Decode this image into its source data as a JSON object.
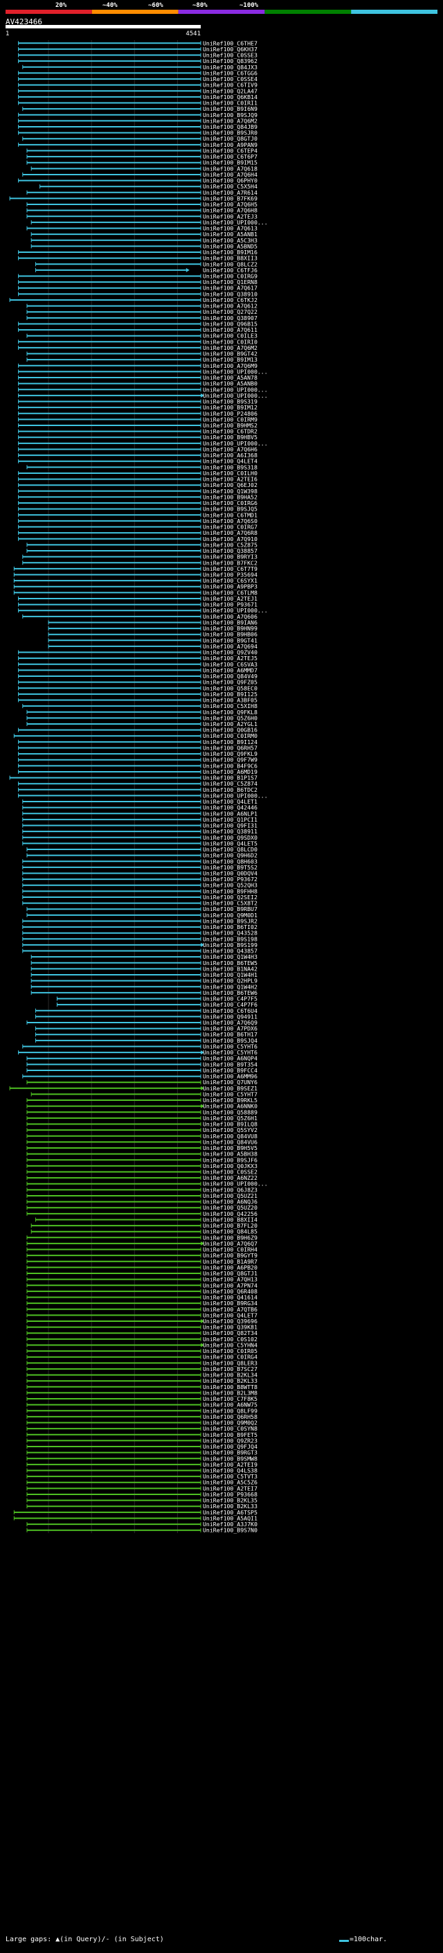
{
  "query_name": "AV423466",
  "chart_data": {
    "type": "alignment-overview",
    "scale_labels": [
      "100%",
      "20%",
      "~40%",
      "~60%",
      "~80%",
      "~100%"
    ],
    "scale_colors": [
      "#e0202a",
      "#ff8c00",
      "#8a2be2",
      "#008000",
      "#3fc4e0"
    ],
    "axis": {
      "start": 1,
      "end": 4541,
      "start_label": "1",
      "end_label": "4541",
      "gridlines": [
        1000,
        2000,
        3000,
        4000
      ]
    },
    "legend": {
      "large_gaps": "Large gaps: ▲(in Query)/- (in Subject)",
      "scale_bar": "=100char."
    },
    "subjects": [
      "UniRef100_C6THE7",
      "UniRef100_Q6KH37",
      "UniRef100_C0SSE3",
      "UniRef100_Q83962",
      "UniRef100_Q84JX3",
      "UniRef100_C6TGG6",
      "UniRef100_C0SSE4",
      "UniRef100_C6TIV9",
      "UniRef100_Q2LA47",
      "UniRef100_Q6KB14",
      "UniRef100_C0IRI1",
      "UniRef100_B9I6N9",
      "UniRef100_B9SJQ9",
      "UniRef100_A7Q6M2",
      "UniRef100_Q84JB9",
      "UniRef100_B9SJR0",
      "UniRef100_Q8GTJ0",
      "UniRef100_A9PAN9",
      "UniRef100_C6TEP4",
      "UniRef100_C6T6P7",
      "UniRef100_B9IM15",
      "UniRef100_A7Q618",
      "UniRef100_A7Q6H4",
      "UniRef100_Q6PHY0",
      "UniRef100_C5X5H4",
      "UniRef100_A7R614",
      "UniRef100_B7FK69",
      "UniRef100_A7Q6H5",
      "UniRef100_A7Q6H8",
      "UniRef100_A2TEJ3",
      "UniRef100_UPI000...",
      "UniRef100_A7Q613",
      "UniRef100_A5ANB1",
      "UniRef100_A5C3H3",
      "UniRef100_A5BND5",
      "UniRef100_B9IM16",
      "UniRef100_B8XII3",
      "UniRef100_Q8LCZ2",
      "UniRef100_C6TFJ6",
      "UniRef100_C0IRG9",
      "UniRef100_Q1ERN8",
      "UniRef100_A7Q617",
      "UniRef100_Q38910",
      "UniRef100_C6TKJ2",
      "UniRef100_A7Q612",
      "UniRef100_Q27Q22",
      "UniRef100_Q38907",
      "UniRef100_Q96B15",
      "UniRef100_A7Q611",
      "UniRef100_C0ILE3",
      "UniRef100_C0IRI0",
      "UniRef100_A7Q6M2",
      "UniRef100_B9GT42",
      "UniRef100_B9IM13",
      "UniRef100_A7Q6M9",
      "UniRef100_UPI000...",
      "UniRef100_A5AN78",
      "UniRef100_A5ANB0",
      "UniRef100_UPI000...",
      "UniRef100_UPI000...",
      "UniRef100_B9S319",
      "UniRef100_B9IM12",
      "UniRef100_P24806",
      "UniRef100_C0IRM9",
      "UniRef100_B9HMS2",
      "UniRef100_C6TDR2",
      "UniRef100_B9HBV5",
      "UniRef100_UPI000...",
      "UniRef100_A7Q6H6",
      "UniRef100_A6I368",
      "UniRef100_Q4LET4",
      "UniRef100_B9S318",
      "UniRef100_C0ILH0",
      "UniRef100_A2TEI6",
      "UniRef100_Q6EJ02",
      "UniRef100_Q1W398",
      "UniRef100_B9HA52",
      "UniRef100_C0IRG6",
      "UniRef100_B9SJQ5",
      "UniRef100_C6TMD1",
      "UniRef100_A7Q6S0",
      "UniRef100_C0IRG7",
      "UniRef100_A7Q6R8",
      "UniRef100_A7Q910",
      "UniRef100_C5Z875",
      "UniRef100_Q38857",
      "UniRef100_B9RYI3",
      "UniRef100_B7FKC2",
      "UniRef100_C6T7T9",
      "UniRef100_P35694",
      "UniRef100_C6SYX1",
      "UniRef100_A9PBP3",
      "UniRef100_C6TLM8",
      "UniRef100_A2TEJ1",
      "UniRef100_P93671",
      "UniRef100_UPI000...",
      "UniRef100_A7Q606",
      "UniRef100_B9IAN6",
      "UniRef100_B9HN99",
      "UniRef100_B9HB06",
      "UniRef100_B9GT41",
      "UniRef100_A7Q694",
      "UniRef100_Q9ZV40",
      "UniRef100_A2TEJ5",
      "UniRef100_C6SVA3",
      "UniRef100_A6MMD7",
      "UniRef100_Q84V49",
      "UniRef100_Q9FZ05",
      "UniRef100_Q58EC0",
      "UniRef100_B9I125",
      "UniRef100_A3BF05",
      "UniRef100_C5XIH8",
      "UniRef100_Q9FKL8",
      "UniRef100_Q5Z6H0",
      "UniRef100_A2YGL1",
      "UniRef100_Q0GB16",
      "UniRef100_C0IRM0",
      "UniRef100_B9I124",
      "UniRef100_Q6RH57",
      "UniRef100_Q9FKL9",
      "UniRef100_Q9F7W9",
      "UniRef100_B4F9C6",
      "UniRef100_A6MD19",
      "UniRef100_B1P1S7",
      "UniRef100_C5Z874",
      "UniRef100_B6TDC2",
      "UniRef100_UPI000...",
      "UniRef100_Q4LET1",
      "UniRef100_Q42446",
      "UniRef100_A6NLP1",
      "UniRef100_Q1PCI1",
      "UniRef100_Q9FI31",
      "UniRef100_Q38911",
      "UniRef100_Q9SDX0",
      "UniRef100_Q4LET5",
      "UniRef100_Q8LCD0",
      "UniRef100_Q9H6D2",
      "UniRef100_Q8H603",
      "UniRef100_B9T5S2",
      "UniRef100_Q0DQV4",
      "UniRef100_P93672",
      "UniRef100_Q52QH3",
      "UniRef100_B9FHH8",
      "UniRef100_Q2SEI2",
      "UniRef100_C5X8T2",
      "UniRef100_B9RBU7",
      "UniRef100_Q9M0D1",
      "UniRef100_B9SJR2",
      "UniRef100_B6TI02",
      "UniRef100_Q43528",
      "UniRef100_B9S198",
      "UniRef100_B9S199",
      "UniRef100_Q43857",
      "UniRef100_Q1W4H3",
      "UniRef100_B6TEW5",
      "UniRef100_B1NA42",
      "UniRef100_Q1W4H1",
      "UniRef100_Q2HPL9",
      "UniRef100_Q1W4H2",
      "UniRef100_B6TEW6",
      "UniRef100_C4P7F5",
      "UniRef100_C4P7F6",
      "UniRef100_C6T6U4",
      "UniRef100_Q94911",
      "UniRef100_A7Q6Q9",
      "UniRef100_A7PDX6",
      "UniRef100_B6TH17",
      "UniRef100_B9SJQ4",
      "UniRef100_C5YHT6",
      "UniRef100_C5YHT6",
      "UniRef100_A6NQP4",
      "UniRef100_B9T354",
      "UniRef100_B9FCC4",
      "UniRef100_A6MM96",
      "UniRef100_Q7UNY6",
      "UniRef100_B9SEZ1",
      "UniRef100_C5YHT7",
      "UniRef100_B9RKL5",
      "UniRef100_A6NNK0",
      "UniRef100_Q58889",
      "UniRef100_Q5Z6H1",
      "UniRef100_B9ILQ8",
      "UniRef100_Q5SYV2",
      "UniRef100_Q84VU8",
      "UniRef100_Q84VU6",
      "UniRef100_B9H5V5",
      "UniRef100_A5BH38",
      "UniRef100_B9SJF6",
      "UniRef100_Q0JKX3",
      "UniRef100_C0SSE2",
      "UniRef100_A6NZ22",
      "UniRef100_UPI000...",
      "UniRef100_Q6J8Z3",
      "UniRef100_Q5UZ21",
      "UniRef100_A6NQJ6",
      "UniRef100_Q5UZ20",
      "UniRef100_Q42256",
      "UniRef100_B8XII4",
      "UniRef100_B7FL20",
      "UniRef100_Q84L85",
      "UniRef100_B9H6Z9",
      "UniRef100_A7Q6Q7",
      "UniRef100_C0IRH4",
      "UniRef100_B9GYT9",
      "UniRef100_B1A9R7",
      "UniRef100_A6PB20",
      "UniRef100_Q8GTJ1",
      "UniRef100_A7QH13",
      "UniRef100_A7PN74",
      "UniRef100_Q6R408",
      "UniRef100_Q41614",
      "UniRef100_B9RG34",
      "UniRef100_A7QTB6",
      "UniRef100_Q4LET7",
      "UniRef100_Q39696",
      "UniRef100_Q39K81",
      "UniRef100_Q82T34",
      "UniRef100_C0S102",
      "UniRef100_C5YHN4",
      "UniRef100_C0IR05",
      "UniRef100_C0IRG4",
      "UniRef100_Q8LER3",
      "UniRef100_B7SC27",
      "UniRef100_B2KL34",
      "UniRef100_B2KL33",
      "UniRef100_B8WTT8",
      "UniRef100_B2L3M8",
      "UniRef100_C7F8K5",
      "UniRef100_A6NW75",
      "UniRef100_Q8LF99",
      "UniRef100_Q6RH58",
      "UniRef100_Q9M0Q2",
      "UniRef100_C0SYN8",
      "UniRef100_B9FET5",
      "UniRef100_Q9ZR23",
      "UniRef100_Q9FJQ4",
      "UniRef100_B9RGT3",
      "UniRef100_B9SMW8",
      "UniRef100_A2TEI9",
      "UniRef100_Q4LS38",
      "UniRef100_C5TVT3",
      "UniRef100_A5C5Z6",
      "UniRef100_A2TEI7",
      "UniRef100_P93668",
      "UniRef100_B2KL35",
      "UniRef100_B2KL33",
      "UniRef100_A6TSP5",
      "UniRef100_A5AQI1",
      "UniRef100_A3J7K0",
      "UniRef100_B9S7N0"
    ],
    "row_colors": [
      "#3fc4e0",
      "#3fc4e0",
      "#3fc4e0",
      "#3fc4e0",
      "#3fc4e0",
      "#3fc4e0",
      "#3fc4e0",
      "#3fc4e0",
      "#3fc4e0",
      "#3fc4e0",
      "#3fc4e0",
      "#3fc4e0",
      "#3fc4e0",
      "#3fc4e0",
      "#3fc4e0",
      "#3fc4e0",
      "#3fc4e0",
      "#3fc4e0",
      "#3fc4e0",
      "#3fc4e0",
      "#3fc4e0",
      "#3fc4e0",
      "#3fc4e0",
      "#3fc4e0",
      "#3fc4e0",
      "#3fc4e0",
      "#3fc4e0",
      "#3fc4e0",
      "#3fc4e0",
      "#3fc4e0",
      "#3fc4e0",
      "#3fc4e0",
      "#3fc4e0",
      "#3fc4e0",
      "#3fc4e0",
      "#3fc4e0",
      "#3fc4e0",
      "#3fc4e0",
      "#3fc4e0",
      "#3fc4e0",
      "#3fc4e0",
      "#3fc4e0",
      "#3fc4e0",
      "#3fc4e0",
      "#3fc4e0",
      "#3fc4e0",
      "#3fc4e0",
      "#3fc4e0",
      "#3fc4e0",
      "#3fc4e0",
      "#3fc4e0",
      "#3fc4e0",
      "#3fc4e0",
      "#3fc4e0",
      "#3fc4e0",
      "#3fc4e0",
      "#3fc4e0",
      "#3fc4e0",
      "#3fc4e0",
      "#3fc4e0",
      "#3fc4e0",
      "#3fc4e0",
      "#3fc4e0",
      "#3fc4e0",
      "#3fc4e0",
      "#3fc4e0",
      "#3fc4e0",
      "#3fc4e0",
      "#3fc4e0",
      "#3fc4e0",
      "#3fc4e0",
      "#3fc4e0",
      "#3fc4e0",
      "#3fc4e0",
      "#3fc4e0",
      "#3fc4e0",
      "#3fc4e0",
      "#3fc4e0",
      "#3fc4e0",
      "#3fc4e0",
      "#3fc4e0",
      "#3fc4e0",
      "#3fc4e0",
      "#3fc4e0",
      "#3fc4e0",
      "#3fc4e0",
      "#3fc4e0",
      "#3fc4e0",
      "#3fc4e0",
      "#3fc4e0",
      "#3fc4e0",
      "#3fc4e0",
      "#3fc4e0",
      "#3fc4e0",
      "#3fc4e0",
      "#3fc4e0",
      "#3fc4e0",
      "#3fc4e0",
      "#3fc4e0",
      "#3fc4e0",
      "#3fc4e0",
      "#3fc4e0",
      "#3fc4e0",
      "#3fc4e0",
      "#3fc4e0",
      "#3fc4e0",
      "#3fc4e0",
      "#3fc4e0",
      "#3fc4e0",
      "#3fc4e0",
      "#3fc4e0",
      "#3fc4e0",
      "#3fc4e0",
      "#3fc4e0",
      "#3fc4e0",
      "#3fc4e0",
      "#3fc4e0",
      "#3fc4e0",
      "#3fc4e0",
      "#3fc4e0",
      "#3fc4e0",
      "#3fc4e0",
      "#3fc4e0",
      "#3fc4e0",
      "#3fc4e0",
      "#3fc4e0",
      "#3fc4e0",
      "#3fc4e0",
      "#3fc4e0",
      "#3fc4e0",
      "#3fc4e0",
      "#3fc4e0",
      "#3fc4e0",
      "#3fc4e0",
      "#3fc4e0",
      "#3fc4e0",
      "#3fc4e0",
      "#3fc4e0",
      "#3fc4e0",
      "#3fc4e0",
      "#3fc4e0",
      "#3fc4e0",
      "#3fc4e0",
      "#3fc4e0",
      "#3fc4e0",
      "#3fc4e0",
      "#3fc4e0",
      "#3fc4e0",
      "#3fc4e0",
      "#3fc4e0",
      "#3fc4e0",
      "#3fc4e0",
      "#3fc4e0",
      "#3fc4e0",
      "#3fc4e0",
      "#3fc4e0",
      "#3fc4e0",
      "#3fc4e0",
      "#3fc4e0",
      "#3fc4e0",
      "#3fc4e0",
      "#3fc4e0",
      "#3fc4e0",
      "#3fc4e0",
      "#3fc4e0",
      "#3fc4e0",
      "#3fc4e0",
      "#3fc4e0",
      "#3fc4e0",
      "#3fc4e0",
      "#3fc4e0",
      "#3fc4e0",
      "#3fc4e0",
      "#3fc4e0",
      "#4ec022",
      "#4ec022",
      "#4ec022",
      "#4ec022",
      "#4ec022",
      "#4ec022",
      "#4ec022",
      "#4ec022",
      "#4ec022",
      "#4ec022",
      "#4ec022",
      "#4ec022",
      "#4ec022",
      "#4ec022",
      "#4ec022",
      "#4ec022",
      "#4ec022",
      "#4ec022",
      "#4ec022",
      "#4ec022",
      "#4ec022",
      "#4ec022",
      "#4ec022",
      "#4ec022",
      "#4ec022",
      "#4ec022",
      "#4ec022",
      "#4ec022",
      "#4ec022",
      "#4ec022",
      "#4ec022",
      "#4ec022",
      "#4ec022",
      "#4ec022",
      "#4ec022",
      "#4ec022",
      "#4ec022",
      "#4ec022",
      "#4ec022",
      "#4ec022",
      "#4ec022",
      "#4ec022",
      "#4ec022",
      "#4ec022",
      "#4ec022",
      "#4ec022",
      "#4ec022",
      "#4ec022",
      "#4ec022",
      "#4ec022",
      "#4ec022",
      "#4ec022",
      "#4ec022",
      "#4ec022",
      "#4ec022",
      "#4ec022",
      "#4ec022",
      "#4ec022",
      "#4ec022",
      "#4ec022",
      "#4ec022",
      "#4ec022",
      "#4ec022",
      "#4ec022",
      "#4ec022",
      "#4ec022",
      "#4ec022",
      "#4ec022",
      "#4ec022",
      "#4ec022",
      "#4ec022",
      "#4ec022",
      "#4ec022",
      "#4ec022",
      "#4ec022",
      "#4ec022",
      "#4ec022",
      "#4ec022",
      "#4ec022",
      "#4ec022",
      "#4ec022",
      "#4ec022",
      "#4ec022",
      "#4ec022",
      "#4ec022",
      "#4ec022",
      "#4ec022",
      "#4ec022",
      "#4ec022",
      "#4ec022",
      "#4ec022",
      "#4ec022",
      "#4ec022",
      "#4ec022",
      "#4ec022",
      "#4ec022",
      "#4ec022"
    ],
    "alignment_start": [
      300,
      300,
      300,
      300,
      400,
      300,
      300,
      300,
      300,
      300,
      300,
      400,
      300,
      300,
      300,
      300,
      400,
      300,
      500,
      500,
      500,
      600,
      400,
      300,
      800,
      500,
      100,
      500,
      500,
      500,
      600,
      500,
      600,
      600,
      600,
      300,
      300,
      700,
      700,
      300,
      300,
      300,
      300,
      100,
      500,
      500,
      500,
      300,
      300,
      500,
      300,
      300,
      500,
      500,
      300,
      300,
      300,
      300,
      300,
      300,
      300,
      300,
      300,
      300,
      300,
      300,
      300,
      300,
      300,
      300,
      300,
      500,
      300,
      300,
      300,
      300,
      300,
      300,
      300,
      300,
      300,
      300,
      300,
      300,
      500,
      500,
      400,
      400,
      200,
      200,
      200,
      200,
      200,
      300,
      300,
      300,
      400,
      1000,
      1000,
      1000,
      1000,
      1000,
      300,
      300,
      300,
      300,
      300,
      300,
      300,
      300,
      300,
      400,
      500,
      500,
      500,
      300,
      200,
      300,
      300,
      300,
      300,
      300,
      300,
      100,
      300,
      300,
      300,
      400,
      400,
      400,
      400,
      400,
      400,
      400,
      400,
      500,
      500,
      400,
      400,
      400,
      400,
      400,
      400,
      400,
      400,
      500,
      500,
      400,
      400,
      400,
      400,
      400,
      400,
      600,
      600,
      600,
      600,
      600,
      600,
      600,
      1200,
      1200,
      700,
      700,
      500,
      700,
      700,
      700,
      400,
      300,
      500,
      500,
      500,
      400,
      500,
      100,
      600,
      500,
      500,
      500,
      500,
      500,
      500,
      500,
      500,
      500,
      500,
      500,
      500,
      500,
      500,
      500,
      500,
      500,
      500,
      500,
      500,
      700,
      600,
      600,
      500,
      500,
      500,
      500,
      500,
      500,
      500,
      500,
      500,
      500,
      500,
      500,
      500,
      500,
      500,
      500,
      500,
      500,
      500,
      500,
      500,
      500,
      500,
      500,
      500,
      500,
      500,
      500,
      500,
      500,
      500,
      500,
      500,
      500,
      500,
      500,
      500,
      500,
      500,
      500,
      500,
      500,
      500,
      500,
      500,
      500,
      200,
      200,
      500,
      500,
      600,
      600,
      600,
      600,
      600,
      600,
      600,
      500,
      500,
      500,
      500,
      500,
      500,
      500,
      500,
      500,
      500,
      500
    ],
    "alignment_end": [
      4541,
      4541,
      4541,
      4541,
      4541,
      4541,
      4541,
      4541,
      4541,
      4541,
      4541,
      4541,
      4541,
      4541,
      4541,
      4541,
      4541,
      4541,
      4541,
      4541,
      4541,
      4541,
      4541,
      4541,
      4541,
      4541,
      4541,
      4541,
      4541,
      4541,
      4541,
      4541,
      4541,
      4541,
      4541,
      4541,
      4541,
      4541,
      4200,
      4541,
      4541,
      4541,
      4541,
      4541,
      4541,
      4541,
      4541,
      4541,
      4541,
      4541,
      4541,
      4541,
      4541,
      4541,
      4541,
      4541,
      4541,
      4541,
      4541,
      4541,
      4541,
      4541,
      4541,
      4541,
      4541,
      4541,
      4541,
      4541,
      4541,
      4541,
      4541,
      4541,
      4541,
      4541,
      4541,
      4541,
      4541,
      4541,
      4541,
      4541,
      4541,
      4541,
      4541,
      4541,
      4541,
      4541,
      4541,
      4541,
      4541,
      4541,
      4541,
      4541,
      4541,
      4541,
      4541,
      4541,
      4541,
      4541,
      4541,
      4541,
      4541,
      4541,
      4541,
      4541,
      4541,
      4541,
      4541,
      4541,
      4541,
      4541,
      4541,
      4541,
      4541,
      4541,
      4541,
      4541,
      4541,
      4541,
      4541,
      4541,
      4541,
      4541,
      4541,
      4541,
      4541,
      4541,
      4541,
      4541,
      4541,
      4541,
      4541,
      4541,
      4541,
      4541,
      4541,
      4541,
      4541,
      4541,
      4541,
      4541,
      4541,
      4541,
      4541,
      4541,
      4541,
      4541,
      4541,
      4541,
      4541,
      4541,
      4541,
      4541,
      4541,
      4541,
      4541,
      4541,
      4541,
      4541,
      4541,
      4541,
      4541,
      4541,
      4541,
      4541,
      4541,
      4541,
      4541,
      4541,
      4541,
      4541,
      4541,
      4541,
      4541,
      4541,
      4541,
      4541,
      4541,
      4541,
      4541,
      4541,
      4541,
      4541,
      4541,
      4541,
      4541,
      4541,
      4541,
      4541,
      4541,
      4541,
      4541,
      4541,
      4541,
      4541,
      4541,
      4541,
      4541,
      4541,
      4541,
      4541,
      4541,
      4541,
      4541,
      4541,
      4541,
      4541,
      4541,
      4541,
      4541,
      4541,
      4541,
      4541,
      4541,
      4541,
      4541,
      4541,
      4541,
      4541,
      4541,
      4541,
      4541,
      4541,
      4541,
      4541,
      4541,
      4541,
      4541,
      4541,
      4541,
      4541,
      4541,
      4541,
      4541,
      4541,
      4541,
      4541,
      4541,
      4541,
      4541,
      4541,
      4541,
      4541,
      4541,
      4541,
      4541,
      4541,
      4541,
      4541,
      4541,
      4541,
      4541,
      4541,
      4541,
      4541,
      4541,
      4541,
      4541
    ],
    "short_bar_rows": [
      38,
      59,
      151,
      169,
      175,
      178,
      201,
      214,
      218
    ]
  }
}
